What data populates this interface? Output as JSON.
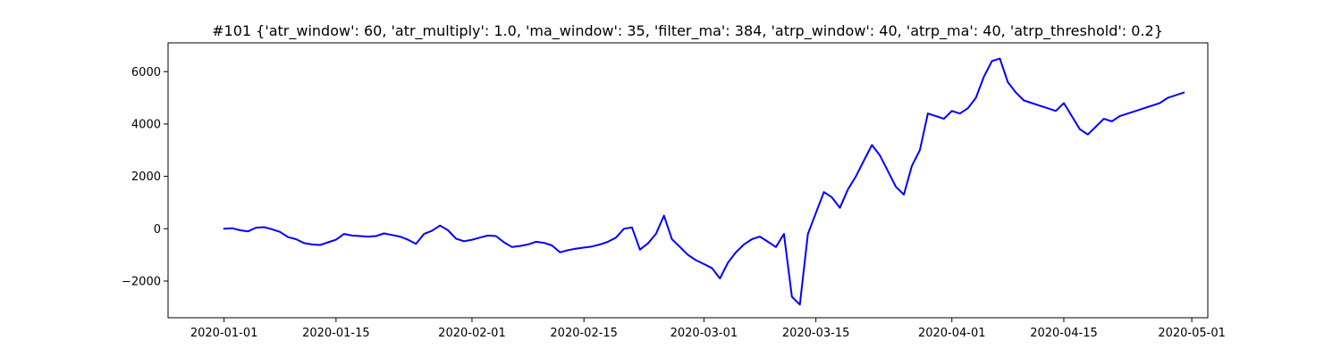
{
  "chart_data": {
    "type": "line",
    "title": "#101 {'atr_window': 60, 'atr_multiply': 1.0, 'ma_window': 35, 'filter_ma': 384, 'atrp_window': 40, 'atrp_ma': 40, 'atrp_threshold': 0.2}",
    "xlabel": "",
    "ylabel": "",
    "x_type": "date",
    "xlim": [
      "2019-12-25",
      "2020-05-03"
    ],
    "ylim": [
      -3400,
      7100
    ],
    "grid": false,
    "legend": "none",
    "x_ticks": [
      "2020-01-01",
      "2020-01-15",
      "2020-02-01",
      "2020-02-15",
      "2020-03-01",
      "2020-03-15",
      "2020-04-01",
      "2020-04-15",
      "2020-05-01"
    ],
    "y_ticks": [
      -2000,
      0,
      2000,
      4000,
      6000
    ],
    "y_tick_labels": [
      "−2000",
      "0",
      "2000",
      "4000",
      "6000"
    ],
    "series": [
      {
        "color": "#0000ff",
        "x": [
          "2020-01-01",
          "2020-01-02",
          "2020-01-03",
          "2020-01-04",
          "2020-01-05",
          "2020-01-06",
          "2020-01-07",
          "2020-01-08",
          "2020-01-09",
          "2020-01-10",
          "2020-01-11",
          "2020-01-12",
          "2020-01-13",
          "2020-01-14",
          "2020-01-15",
          "2020-01-16",
          "2020-01-17",
          "2020-01-18",
          "2020-01-19",
          "2020-01-20",
          "2020-01-21",
          "2020-01-22",
          "2020-01-23",
          "2020-01-24",
          "2020-01-25",
          "2020-01-26",
          "2020-01-27",
          "2020-01-28",
          "2020-01-29",
          "2020-01-30",
          "2020-01-31",
          "2020-02-01",
          "2020-02-02",
          "2020-02-03",
          "2020-02-04",
          "2020-02-05",
          "2020-02-06",
          "2020-02-07",
          "2020-02-08",
          "2020-02-09",
          "2020-02-10",
          "2020-02-11",
          "2020-02-12",
          "2020-02-13",
          "2020-02-14",
          "2020-02-15",
          "2020-02-16",
          "2020-02-17",
          "2020-02-18",
          "2020-02-19",
          "2020-02-20",
          "2020-02-21",
          "2020-02-22",
          "2020-02-23",
          "2020-02-24",
          "2020-02-25",
          "2020-02-26",
          "2020-02-27",
          "2020-02-28",
          "2020-02-29",
          "2020-03-01",
          "2020-03-02",
          "2020-03-03",
          "2020-03-04",
          "2020-03-05",
          "2020-03-06",
          "2020-03-07",
          "2020-03-08",
          "2020-03-09",
          "2020-03-10",
          "2020-03-11",
          "2020-03-12",
          "2020-03-13",
          "2020-03-14",
          "2020-03-15",
          "2020-03-16",
          "2020-03-17",
          "2020-03-18",
          "2020-03-19",
          "2020-03-20",
          "2020-03-21",
          "2020-03-22",
          "2020-03-23",
          "2020-03-24",
          "2020-03-25",
          "2020-03-26",
          "2020-03-27",
          "2020-03-28",
          "2020-03-29",
          "2020-03-30",
          "2020-03-31",
          "2020-04-01",
          "2020-04-02",
          "2020-04-03",
          "2020-04-04",
          "2020-04-05",
          "2020-04-06",
          "2020-04-07",
          "2020-04-08",
          "2020-04-09",
          "2020-04-10",
          "2020-04-11",
          "2020-04-12",
          "2020-04-13",
          "2020-04-14",
          "2020-04-15",
          "2020-04-16",
          "2020-04-17",
          "2020-04-18",
          "2020-04-19",
          "2020-04-20",
          "2020-04-21",
          "2020-04-22",
          "2020-04-23",
          "2020-04-24",
          "2020-04-25",
          "2020-04-26",
          "2020-04-27",
          "2020-04-28",
          "2020-04-29",
          "2020-04-30"
        ],
        "y": [
          0,
          20,
          -60,
          -100,
          40,
          60,
          -20,
          -120,
          -320,
          -400,
          -550,
          -600,
          -620,
          -520,
          -420,
          -200,
          -260,
          -280,
          -300,
          -280,
          -180,
          -240,
          -300,
          -420,
          -580,
          -200,
          -80,
          120,
          -60,
          -380,
          -480,
          -420,
          -340,
          -260,
          -280,
          -520,
          -700,
          -660,
          -600,
          -500,
          -540,
          -640,
          -900,
          -820,
          -760,
          -720,
          -680,
          -600,
          -500,
          -340,
          0,
          50,
          -800,
          -560,
          -200,
          500,
          -400,
          -700,
          -1000,
          -1200,
          -1350,
          -1500,
          -1900,
          -1300,
          -900,
          -600,
          -400,
          -300,
          -500,
          -700,
          -200,
          -2600,
          -2900,
          -200,
          600,
          1400,
          1200,
          800,
          1500,
          2000,
          2600,
          3200,
          2800,
          2200,
          1600,
          1300,
          2400,
          3000,
          4400,
          4300,
          4200,
          4500,
          4400,
          4600,
          5000,
          5800,
          6400,
          6500,
          5600,
          5200,
          4900,
          4800,
          4700,
          4600,
          4500,
          4800,
          4300,
          3800,
          3600,
          3900,
          4200,
          4100,
          4300,
          4400,
          4500,
          4600,
          4700,
          4800,
          5000,
          5100,
          5200
        ]
      }
    ]
  }
}
